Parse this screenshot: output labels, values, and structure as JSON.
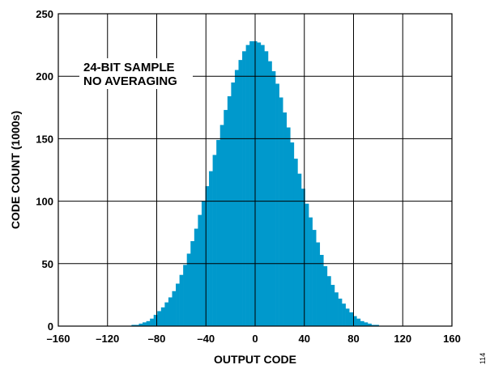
{
  "chart_data": {
    "type": "bar",
    "xlabel": "OUTPUT CODE",
    "ylabel": "CODE COUNT (1000s)",
    "xlim": [
      -160,
      160
    ],
    "ylim": [
      0,
      250
    ],
    "xticks": [
      -160,
      -120,
      -80,
      -40,
      0,
      40,
      80,
      120,
      160
    ],
    "xtick_labels": [
      "–160",
      "–120",
      "–80",
      "–40",
      "0",
      "40",
      "80",
      "120",
      "160"
    ],
    "yticks": [
      0,
      50,
      100,
      150,
      200,
      250
    ],
    "ytick_labels": [
      "0",
      "50",
      "100",
      "150",
      "200",
      "250"
    ],
    "grid": true,
    "annotation": [
      "24-BIT SAMPLE",
      "NO AVERAGING"
    ],
    "bar_color": "#0099cc",
    "x": [
      -99,
      -96,
      -93,
      -90,
      -87,
      -84,
      -81,
      -78,
      -75,
      -72,
      -69,
      -66,
      -63,
      -60,
      -57,
      -54,
      -51,
      -48,
      -45,
      -42,
      -39,
      -36,
      -33,
      -30,
      -27,
      -24,
      -21,
      -18,
      -15,
      -12,
      -9,
      -6,
      -3,
      0,
      3,
      6,
      9,
      12,
      15,
      18,
      21,
      24,
      27,
      30,
      33,
      36,
      39,
      42,
      45,
      48,
      51,
      54,
      57,
      60,
      63,
      66,
      69,
      72,
      75,
      78,
      81,
      84,
      87,
      90,
      93,
      96,
      99
    ],
    "values": [
      1,
      1,
      2,
      3,
      4,
      6,
      9,
      12,
      15,
      19,
      23,
      28,
      34,
      41,
      49,
      58,
      68,
      78,
      89,
      100,
      112,
      124,
      137,
      149,
      161,
      173,
      184,
      195,
      205,
      213,
      220,
      225,
      228,
      228,
      227,
      225,
      220,
      212,
      204,
      194,
      183,
      171,
      159,
      147,
      134,
      122,
      110,
      98,
      87,
      77,
      67,
      57,
      48,
      40,
      33,
      27,
      22,
      18,
      14,
      11,
      8,
      6,
      4,
      3,
      2,
      1,
      1
    ]
  },
  "figure_id": "114"
}
